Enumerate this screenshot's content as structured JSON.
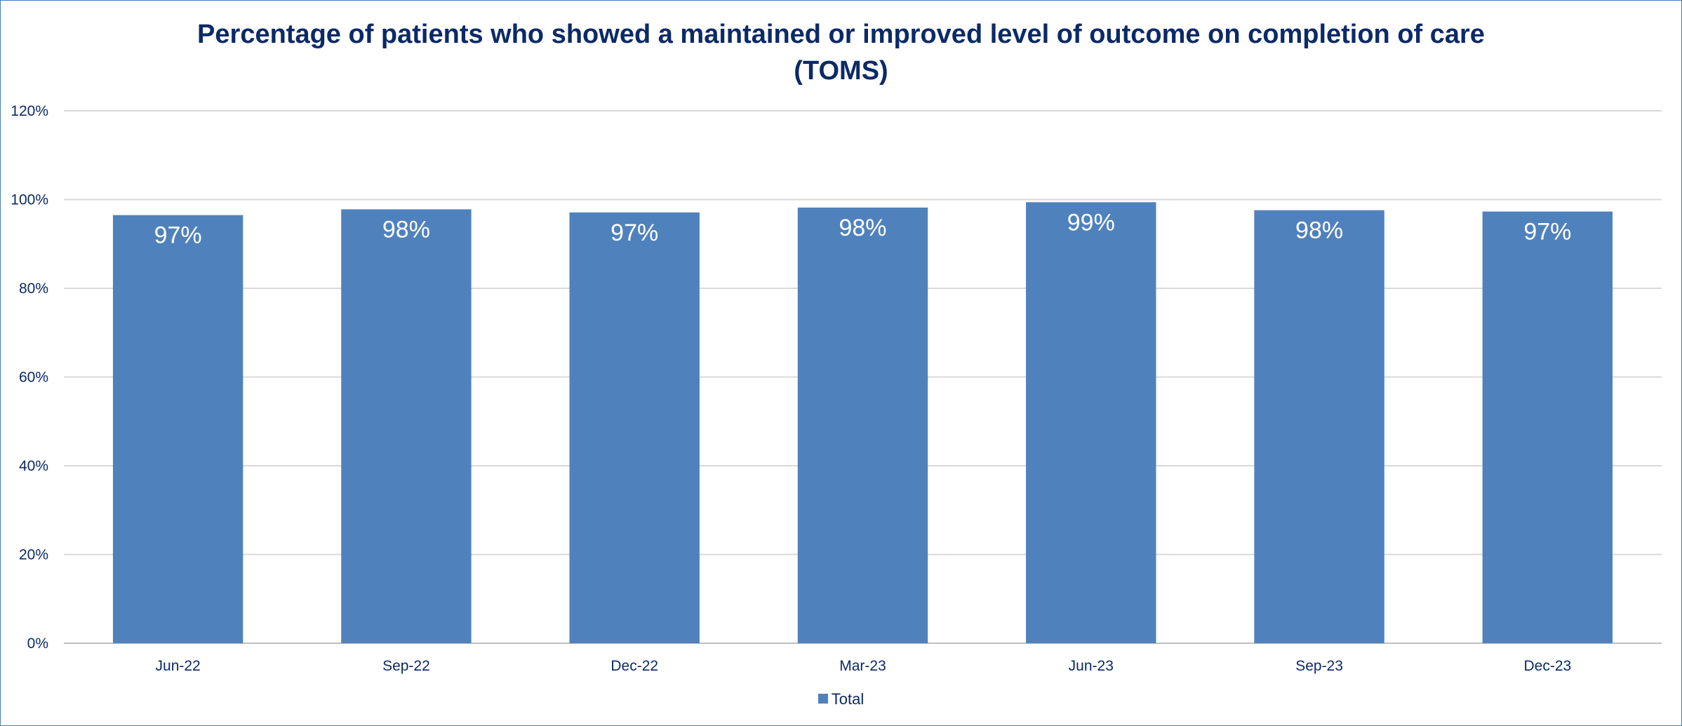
{
  "chart_data": {
    "type": "bar",
    "title": "Percentage of patients who showed a maintained or improved level of outcome on completion of care",
    "title_line2": "(TOMS)",
    "categories": [
      "Jun-22",
      "Sep-22",
      "Dec-22",
      "Mar-23",
      "Jun-23",
      "Sep-23",
      "Dec-23"
    ],
    "series": [
      {
        "name": "Total",
        "color": "#4f81bd",
        "values": [
          96.5,
          97.8,
          97.1,
          98.2,
          99.4,
          97.6,
          97.3
        ],
        "data_labels": [
          "97%",
          "98%",
          "97%",
          "98%",
          "99%",
          "98%",
          "97%"
        ]
      }
    ],
    "ylim": [
      0,
      120
    ],
    "yticks": [
      0,
      20,
      40,
      60,
      80,
      100,
      120
    ],
    "ytick_labels": [
      "0%",
      "20%",
      "40%",
      "60%",
      "80%",
      "100%",
      "120%"
    ],
    "grid": true,
    "legend_position": "bottom"
  }
}
